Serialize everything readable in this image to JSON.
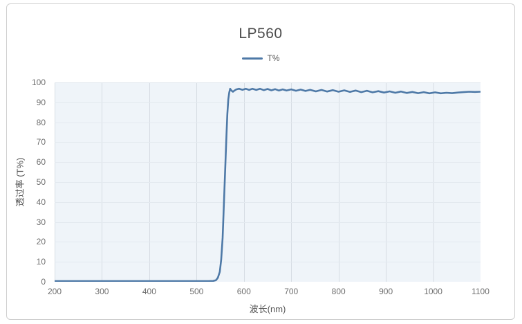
{
  "chart_data": {
    "type": "line",
    "title": "LP560",
    "xlabel": "波长(nm)",
    "ylabel": "透过率 (T%)",
    "xlim": [
      200,
      1100
    ],
    "ylim": [
      0,
      100
    ],
    "x_ticks": [
      200,
      300,
      400,
      500,
      600,
      700,
      800,
      900,
      1000,
      1100
    ],
    "y_ticks": [
      0,
      10,
      20,
      30,
      40,
      50,
      60,
      70,
      80,
      90,
      100
    ],
    "grid": true,
    "legend_position": "top",
    "series": [
      {
        "name": "T%",
        "color": "#4e79a7",
        "points": [
          [
            200,
            0.3
          ],
          [
            240,
            0.3
          ],
          [
            280,
            0.3
          ],
          [
            320,
            0.3
          ],
          [
            360,
            0.3
          ],
          [
            400,
            0.3
          ],
          [
            440,
            0.3
          ],
          [
            480,
            0.3
          ],
          [
            510,
            0.3
          ],
          [
            525,
            0.3
          ],
          [
            535,
            0.4
          ],
          [
            541,
            0.8
          ],
          [
            545,
            2
          ],
          [
            549,
            5
          ],
          [
            552,
            11
          ],
          [
            555,
            22
          ],
          [
            557,
            34
          ],
          [
            559,
            47
          ],
          [
            561,
            60
          ],
          [
            563,
            73
          ],
          [
            565,
            84
          ],
          [
            567,
            91.5
          ],
          [
            569,
            95
          ],
          [
            571,
            96.8
          ],
          [
            574,
            95.8
          ],
          [
            577,
            95.3
          ],
          [
            580,
            95.9
          ],
          [
            584,
            96.5
          ],
          [
            590,
            96.8
          ],
          [
            597,
            96.3
          ],
          [
            604,
            96.8
          ],
          [
            611,
            96.2
          ],
          [
            618,
            96.8
          ],
          [
            626,
            96.2
          ],
          [
            634,
            96.8
          ],
          [
            642,
            96.1
          ],
          [
            650,
            96.7
          ],
          [
            658,
            96.0
          ],
          [
            666,
            96.6
          ],
          [
            674,
            95.9
          ],
          [
            682,
            96.5
          ],
          [
            690,
            95.9
          ],
          [
            700,
            96.5
          ],
          [
            710,
            95.8
          ],
          [
            720,
            96.4
          ],
          [
            730,
            95.7
          ],
          [
            740,
            96.3
          ],
          [
            752,
            95.5
          ],
          [
            764,
            96.2
          ],
          [
            776,
            95.4
          ],
          [
            788,
            96.1
          ],
          [
            800,
            95.3
          ],
          [
            812,
            96.0
          ],
          [
            824,
            95.2
          ],
          [
            836,
            95.9
          ],
          [
            848,
            95.1
          ],
          [
            860,
            95.8
          ],
          [
            872,
            95.0
          ],
          [
            884,
            95.6
          ],
          [
            896,
            94.9
          ],
          [
            908,
            95.5
          ],
          [
            920,
            94.8
          ],
          [
            932,
            95.4
          ],
          [
            944,
            94.7
          ],
          [
            956,
            95.2
          ],
          [
            968,
            94.6
          ],
          [
            980,
            95.1
          ],
          [
            992,
            94.5
          ],
          [
            1004,
            95.0
          ],
          [
            1016,
            94.5
          ],
          [
            1028,
            94.8
          ],
          [
            1040,
            94.6
          ],
          [
            1052,
            94.9
          ],
          [
            1064,
            95.1
          ],
          [
            1076,
            95.3
          ],
          [
            1088,
            95.2
          ],
          [
            1100,
            95.3
          ]
        ]
      }
    ]
  },
  "style": {
    "plot_bg": "#eff4f9",
    "h_grid": "#e3e9ef",
    "v_grid": "#d6dce3",
    "accent": "#4e79a7"
  }
}
